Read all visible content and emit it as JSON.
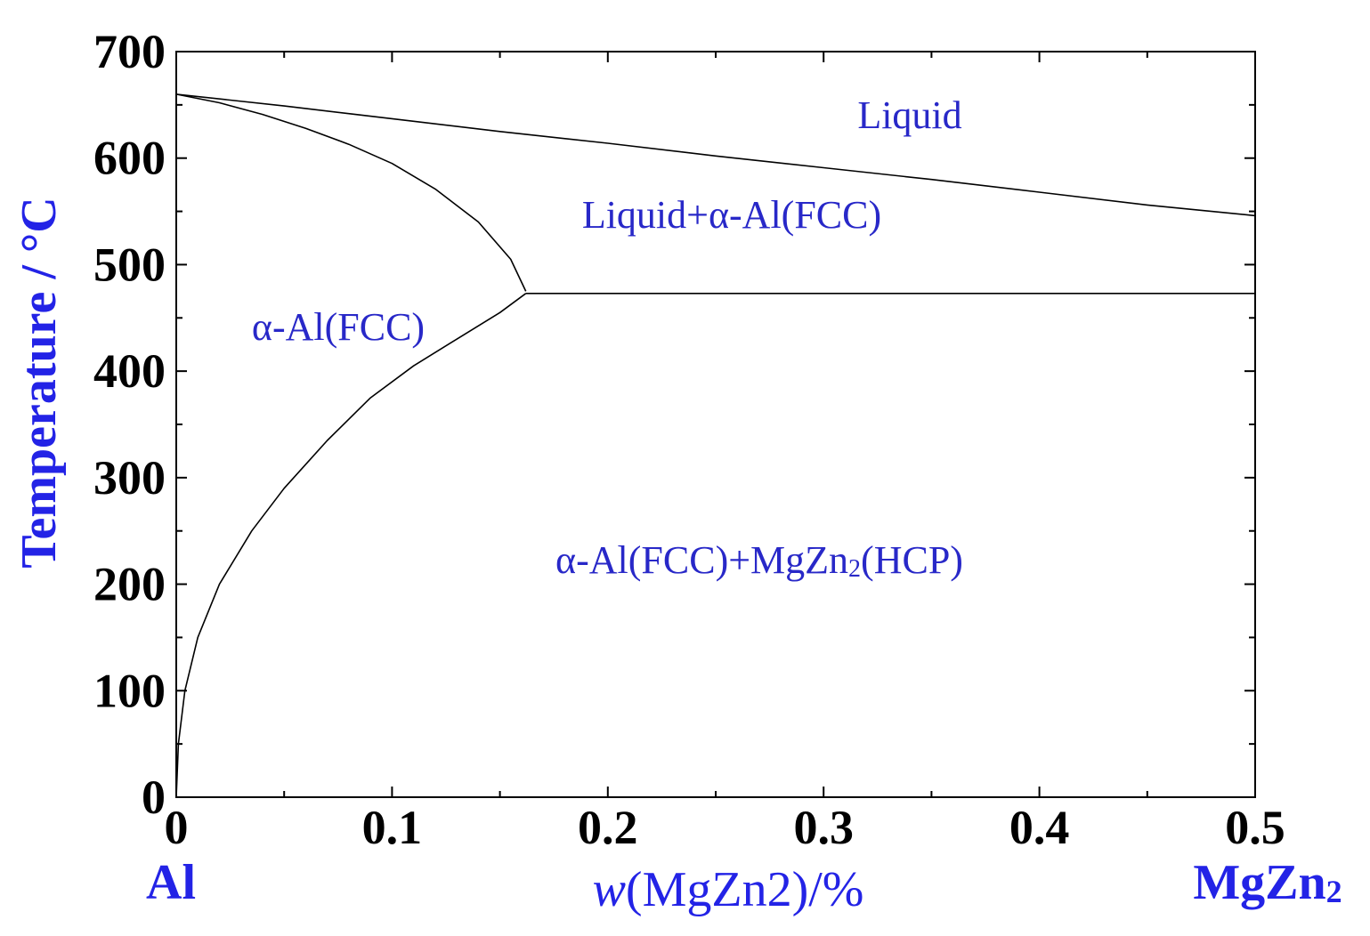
{
  "chart_data": {
    "type": "line",
    "title": "",
    "xlabel_italic": "w",
    "xlabel_rest": "(MgZn2)/%",
    "ylabel": "Temperature / °C",
    "xlim": [
      0,
      0.5
    ],
    "ylim": [
      0,
      700
    ],
    "xticks": [
      0,
      0.1,
      0.2,
      0.3,
      0.4,
      0.5
    ],
    "xtick_labels": [
      "0",
      "0.1",
      "0.2",
      "0.3",
      "0.4",
      "0.5"
    ],
    "yticks": [
      0,
      100,
      200,
      300,
      400,
      500,
      600,
      700
    ],
    "ytick_labels": [
      "0",
      "100",
      "200",
      "300",
      "400",
      "500",
      "600",
      "700"
    ],
    "x_minor_step": 0.05,
    "y_minor_step": 50,
    "grid": false,
    "end_labels": {
      "left": "Al",
      "right_main": "MgZn",
      "right_sub": "2"
    },
    "region_labels": {
      "liquid": "Liquid",
      "liquid_fcc": "Liquid+α-Al(FCC)",
      "fcc": "α-Al(FCC)",
      "fcc_hcp_before": "α-Al(FCC)+MgZn",
      "fcc_hcp_sub": "2",
      "fcc_hcp_after": "(HCP)"
    },
    "series": [
      {
        "id": "liquidus",
        "x": [
          0,
          0.05,
          0.1,
          0.15,
          0.2,
          0.25,
          0.3,
          0.35,
          0.4,
          0.45,
          0.5
        ],
        "y": [
          660,
          649,
          637,
          625,
          614,
          602,
          591,
          580,
          568,
          556,
          546
        ]
      },
      {
        "id": "solidus",
        "x": [
          0,
          0.02,
          0.04,
          0.06,
          0.08,
          0.1,
          0.12,
          0.14,
          0.155,
          0.162
        ],
        "y": [
          660,
          652,
          641,
          628,
          613,
          595,
          571,
          540,
          505,
          475
        ]
      },
      {
        "id": "solvus",
        "x": [
          0,
          0.001,
          0.004,
          0.01,
          0.02,
          0.035,
          0.05,
          0.07,
          0.09,
          0.11,
          0.13,
          0.15,
          0.162
        ],
        "y": [
          0,
          50,
          100,
          150,
          200,
          250,
          290,
          335,
          375,
          405,
          430,
          455,
          473
        ]
      },
      {
        "id": "eutectic",
        "x": [
          0.162,
          0.5
        ],
        "y": [
          473,
          473
        ]
      }
    ]
  }
}
